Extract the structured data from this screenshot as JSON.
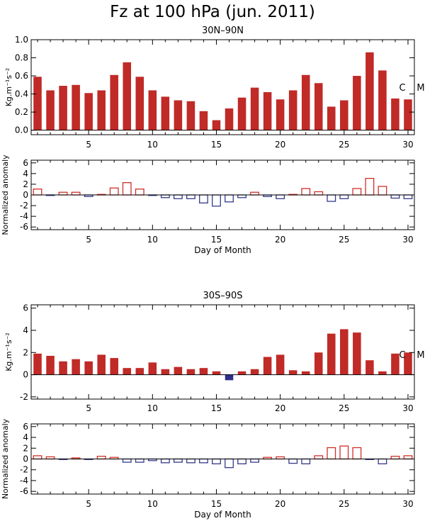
{
  "figure": {
    "title": "Fz at 100 hPa (jun. 2011)"
  },
  "colors": {
    "positive_fill": "#c02a27",
    "negative_fill": "#2e2e8a",
    "positive_outline": "#d0302a",
    "negative_outline": "#363a8c",
    "axis": "#000000"
  },
  "chart_data": [
    {
      "type": "bar",
      "panel": "30N-90N Fz",
      "title": "30N–90N",
      "xlabel": "",
      "ylabel": "Kg.m⁻¹s⁻²",
      "xlim": [
        0.5,
        30.5
      ],
      "ylim": [
        -0.05,
        1.0
      ],
      "x_ticks": [
        5,
        10,
        15,
        20,
        25,
        30
      ],
      "y_ticks": [
        0.0,
        0.2,
        0.4,
        0.6,
        0.8,
        1.0
      ],
      "y_tick_labels": [
        "0.0",
        "0.2",
        "0.4",
        "0.6",
        "0.8",
        "1.0"
      ],
      "x_tick_labels_shown": true,
      "side_labels": [
        "C",
        "M"
      ],
      "x": [
        1,
        2,
        3,
        4,
        5,
        6,
        7,
        8,
        9,
        10,
        11,
        12,
        13,
        14,
        15,
        16,
        17,
        18,
        19,
        20,
        21,
        22,
        23,
        24,
        25,
        26,
        27,
        28,
        29,
        30
      ],
      "values": [
        0.59,
        0.44,
        0.49,
        0.5,
        0.41,
        0.44,
        0.61,
        0.75,
        0.59,
        0.44,
        0.37,
        0.33,
        0.32,
        0.21,
        0.11,
        0.24,
        0.36,
        0.47,
        0.42,
        0.34,
        0.44,
        0.61,
        0.52,
        0.26,
        0.33,
        0.6,
        0.86,
        0.66,
        0.35,
        0.34
      ],
      "style": "filled"
    },
    {
      "type": "bar",
      "panel": "30N-90N anomaly",
      "title": "",
      "xlabel": "Day of Month",
      "ylabel": "Normalized anomaly",
      "xlim": [
        0.5,
        30.5
      ],
      "ylim": [
        -6.5,
        6.5
      ],
      "x_ticks": [
        5,
        10,
        15,
        20,
        25,
        30
      ],
      "y_ticks": [
        -6,
        -4,
        -2,
        0,
        2,
        4,
        6
      ],
      "y_tick_labels": [
        "-6",
        "-4",
        "-2",
        "0",
        "2",
        "4",
        "6"
      ],
      "x_tick_labels_shown": true,
      "side_labels": [],
      "x": [
        1,
        2,
        3,
        4,
        5,
        6,
        7,
        8,
        9,
        10,
        11,
        12,
        13,
        14,
        15,
        16,
        17,
        18,
        19,
        20,
        21,
        22,
        23,
        24,
        25,
        26,
        27,
        28,
        29,
        30
      ],
      "values": [
        1.1,
        -0.1,
        0.5,
        0.5,
        -0.3,
        0.1,
        1.3,
        2.3,
        1.1,
        -0.1,
        -0.5,
        -0.7,
        -0.7,
        -1.5,
        -2.1,
        -1.3,
        -0.5,
        0.5,
        -0.3,
        -0.7,
        0.1,
        1.2,
        0.6,
        -1.2,
        -0.7,
        1.2,
        3.1,
        1.6,
        -0.6,
        -0.7
      ],
      "style": "outline"
    },
    {
      "type": "bar",
      "panel": "30S-90S Fz",
      "title": "30S–90S",
      "xlabel": "",
      "ylabel": "Kg.m⁻¹s⁻²",
      "xlim": [
        0.5,
        30.5
      ],
      "ylim": [
        -2.2,
        6.3
      ],
      "x_ticks": [
        5,
        10,
        15,
        20,
        25,
        30
      ],
      "y_ticks": [
        -2,
        0,
        2,
        4,
        6
      ],
      "y_tick_labels": [
        "-2",
        "0",
        "2",
        "4",
        "6"
      ],
      "x_tick_labels_shown": true,
      "side_labels": [
        "C",
        "M"
      ],
      "x": [
        1,
        2,
        3,
        4,
        5,
        6,
        7,
        8,
        9,
        10,
        11,
        12,
        13,
        14,
        15,
        16,
        17,
        18,
        19,
        20,
        21,
        22,
        23,
        24,
        25,
        26,
        27,
        28,
        29,
        30
      ],
      "values": [
        1.9,
        1.7,
        1.2,
        1.4,
        1.2,
        1.8,
        1.5,
        0.6,
        0.6,
        1.1,
        0.5,
        0.7,
        0.5,
        0.6,
        0.3,
        -0.5,
        0.3,
        0.5,
        1.6,
        1.8,
        0.4,
        0.3,
        2.0,
        3.7,
        4.1,
        3.8,
        1.3,
        0.3,
        1.9,
        2.0
      ],
      "style": "filled"
    },
    {
      "type": "bar",
      "panel": "30S-90S anomaly",
      "title": "",
      "xlabel": "Day of Month",
      "ylabel": "Normalized anomaly",
      "xlim": [
        0.5,
        30.5
      ],
      "ylim": [
        -6.5,
        6.5
      ],
      "x_ticks": [
        5,
        10,
        15,
        20,
        25,
        30
      ],
      "y_ticks": [
        -6,
        -4,
        -2,
        0,
        2,
        4,
        6
      ],
      "y_tick_labels": [
        "-6",
        "-4",
        "-2",
        "0",
        "2",
        "4",
        "6"
      ],
      "x_tick_labels_shown": true,
      "side_labels": [],
      "x": [
        1,
        2,
        3,
        4,
        5,
        6,
        7,
        8,
        9,
        10,
        11,
        12,
        13,
        14,
        15,
        16,
        17,
        18,
        19,
        20,
        21,
        22,
        23,
        24,
        25,
        26,
        27,
        28,
        29,
        30
      ],
      "values": [
        0.6,
        0.4,
        -0.1,
        0.2,
        -0.1,
        0.5,
        0.3,
        -0.6,
        -0.6,
        -0.3,
        -0.7,
        -0.6,
        -0.7,
        -0.7,
        -0.9,
        -1.6,
        -0.9,
        -0.6,
        0.3,
        0.4,
        -0.8,
        -0.9,
        0.6,
        2.1,
        2.4,
        2.1,
        -0.1,
        -0.9,
        0.5,
        0.6
      ],
      "style": "outline"
    }
  ]
}
